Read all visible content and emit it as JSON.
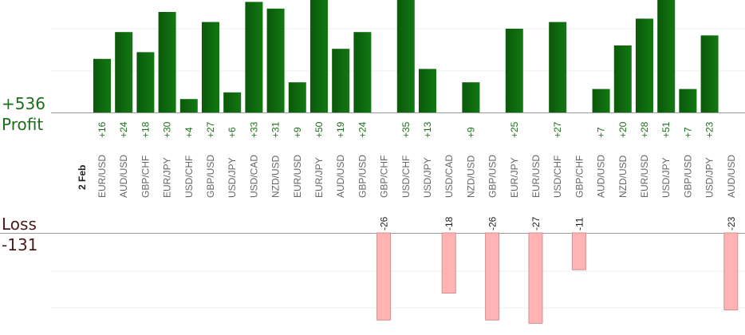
{
  "summary": {
    "profit_total": "+536",
    "profit_label": "Profit",
    "loss_label": "Loss",
    "loss_total": "-131",
    "profit_color": "#1a6e1a",
    "loss_color": "#4a1a1a"
  },
  "chart_data": {
    "type": "bar",
    "date_label": "2 Feb",
    "grid": true,
    "colors": {
      "profit": "#0e6a0e",
      "loss": "#ffb3b3",
      "profit_text": "#1a6e1a"
    },
    "categories": [
      "EUR/USD",
      "AUD/USD",
      "GBP/CHF",
      "EUR/JPY",
      "USD/CHF",
      "GBP/USD",
      "USD/JPY",
      "USD/CAD",
      "NZD/USD",
      "EUR/USD",
      "EUR/JPY",
      "AUD/USD",
      "GBP/USD",
      "GBP/CHF",
      "USD/CHF",
      "USD/JPY",
      "USD/CAD",
      "NZD/USD",
      "GBP/USD",
      "EUR/JPY",
      "EUR/USD",
      "USD/CHF",
      "GBP/CHF",
      "AUD/USD",
      "NZD/USD",
      "EUR/USD",
      "USD/JPY",
      "GBP/USD",
      "USD/JPY",
      "AUD/USD"
    ],
    "profits": [
      16,
      24,
      18,
      30,
      4,
      27,
      6,
      33,
      31,
      9,
      50,
      19,
      24,
      null,
      35,
      13,
      null,
      9,
      null,
      25,
      null,
      27,
      null,
      7,
      20,
      28,
      51,
      7,
      23,
      null
    ],
    "losses": [
      null,
      null,
      null,
      null,
      null,
      null,
      null,
      null,
      null,
      null,
      null,
      null,
      null,
      -26,
      null,
      null,
      -18,
      null,
      -26,
      null,
      -27,
      null,
      -11,
      null,
      null,
      null,
      null,
      null,
      null,
      -23
    ]
  }
}
